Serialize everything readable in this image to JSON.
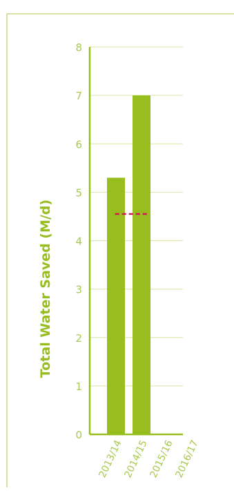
{
  "chart_data": {
    "type": "bar",
    "title": "",
    "xlabel": "",
    "ylabel": "Total Water Saved (M/d)",
    "categories": [
      "2013/14",
      "2014/15",
      "2015/16",
      "2016/17"
    ],
    "values": [
      5.3,
      7.0,
      null,
      null
    ],
    "ylim": [
      0,
      8
    ],
    "yticks": [
      0,
      1,
      2,
      3,
      4,
      5,
      6,
      7,
      8
    ],
    "target": {
      "value": 4.55,
      "categories": [
        "2013/14",
        "2014/15"
      ],
      "style": "dashed"
    },
    "grid": true,
    "legend": "none"
  },
  "colors": {
    "bar": "#97BD1F",
    "axis": "#97BD1F",
    "grid": "#D6E8A6",
    "tick_text": "#A7C94E",
    "target_line": "#D4145A",
    "frame": "#C5DC84"
  }
}
